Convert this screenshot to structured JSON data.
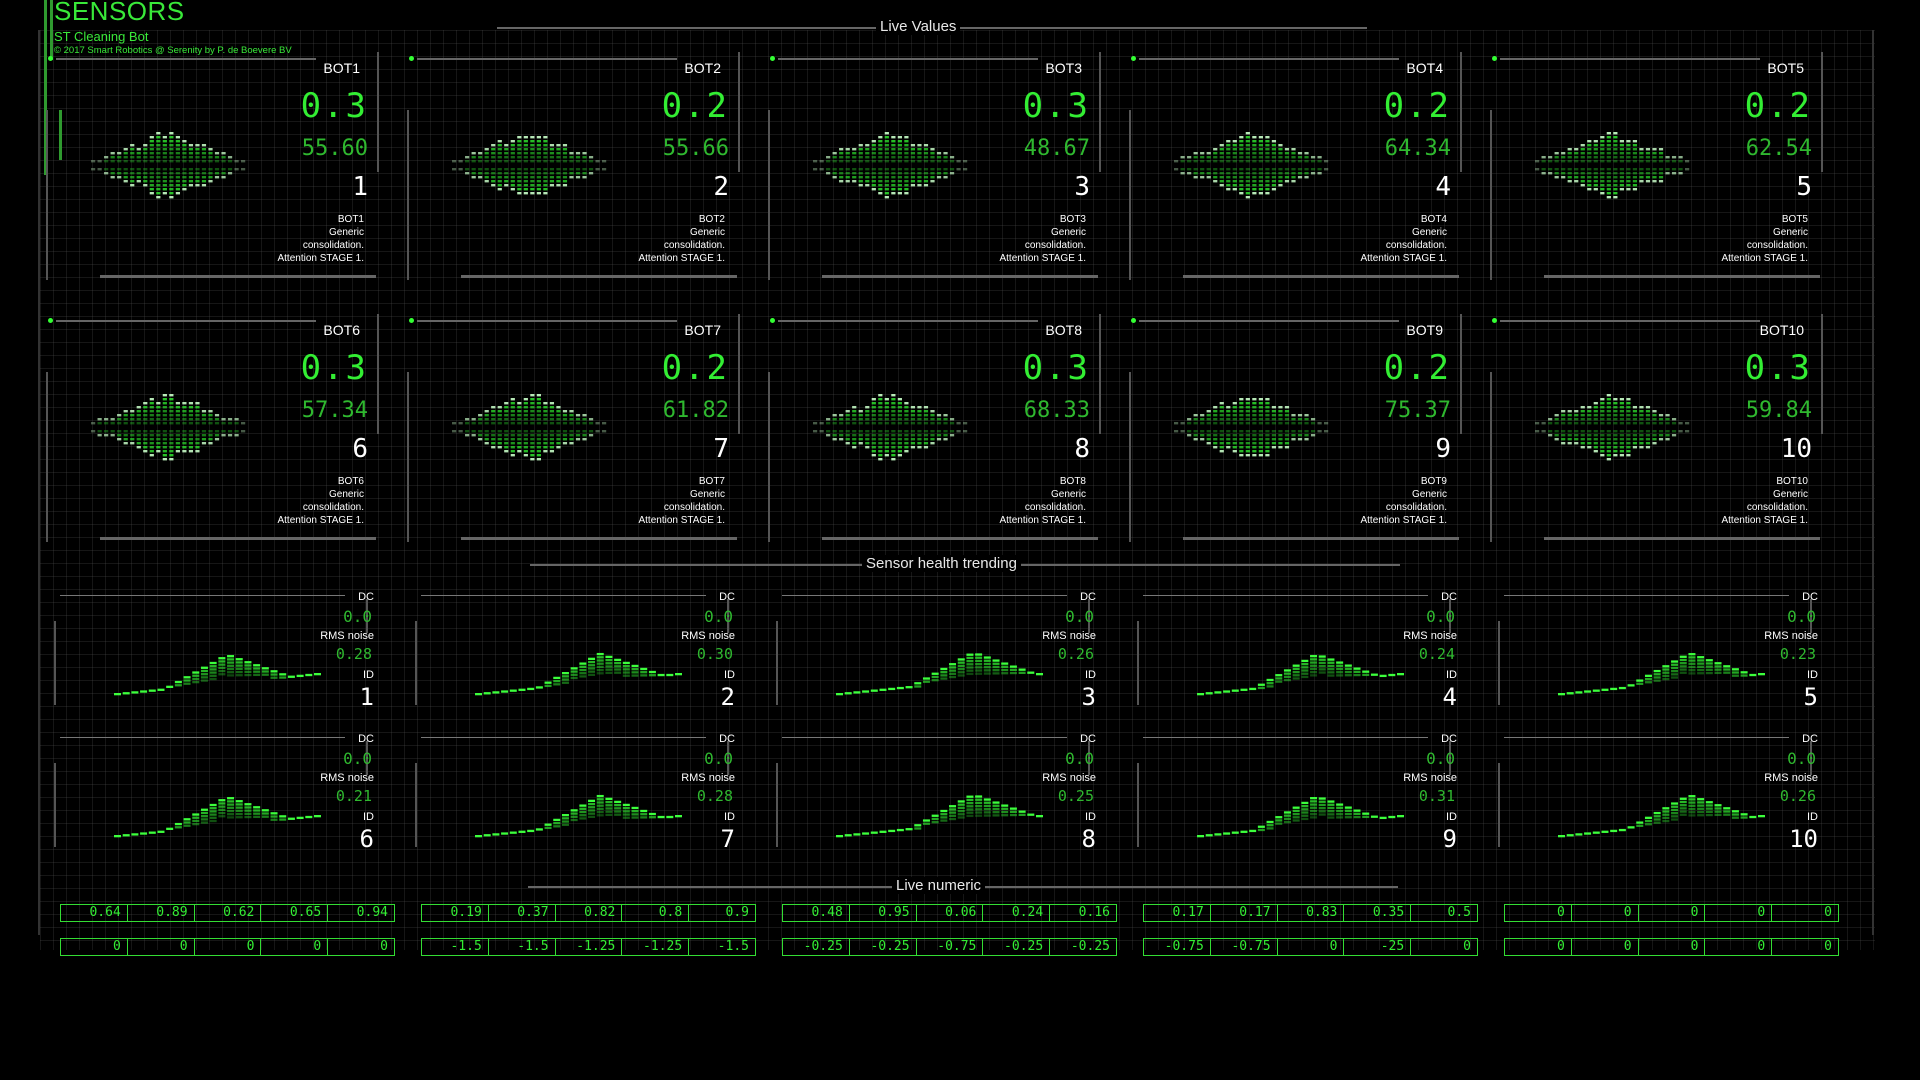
{
  "header": {
    "title": "SENSORS",
    "subtitle": "ST Cleaning Bot",
    "copyright": "© 2017 Smart Robotics @ Serenity by P. de Boevere BV"
  },
  "sections": {
    "live_values": "Live Values",
    "sensor_health": "Sensor health trending",
    "live_numeric": "Live numeric"
  },
  "colors": {
    "accent": "#33ee33",
    "dim_green": "#2fb82f",
    "background": "#000000"
  },
  "bots": [
    {
      "name": "BOT1",
      "big": "0.3",
      "mid": "55.60",
      "id": "1",
      "desc": [
        "BOT1",
        "Generic",
        "consolidation.",
        "Attention STAGE 1."
      ]
    },
    {
      "name": "BOT2",
      "big": "0.2",
      "mid": "55.66",
      "id": "2",
      "desc": [
        "BOT2",
        "Generic",
        "consolidation.",
        "Attention STAGE 1."
      ]
    },
    {
      "name": "BOT3",
      "big": "0.3",
      "mid": "48.67",
      "id": "3",
      "desc": [
        "BOT3",
        "Generic",
        "consolidation.",
        "Attention STAGE 1."
      ]
    },
    {
      "name": "BOT4",
      "big": "0.2",
      "mid": "64.34",
      "id": "4",
      "desc": [
        "BOT4",
        "Generic",
        "consolidation.",
        "Attention STAGE 1."
      ]
    },
    {
      "name": "BOT5",
      "big": "0.2",
      "mid": "62.54",
      "id": "5",
      "desc": [
        "BOT5",
        "Generic",
        "consolidation.",
        "Attention STAGE 1."
      ]
    },
    {
      "name": "BOT6",
      "big": "0.3",
      "mid": "57.34",
      "id": "6",
      "desc": [
        "BOT6",
        "Generic",
        "consolidation.",
        "Attention STAGE 1."
      ]
    },
    {
      "name": "BOT7",
      "big": "0.2",
      "mid": "61.82",
      "id": "7",
      "desc": [
        "BOT7",
        "Generic",
        "consolidation.",
        "Attention STAGE 1."
      ]
    },
    {
      "name": "BOT8",
      "big": "0.3",
      "mid": "68.33",
      "id": "8",
      "desc": [
        "BOT8",
        "Generic",
        "consolidation.",
        "Attention STAGE 1."
      ]
    },
    {
      "name": "BOT9",
      "big": "0.2",
      "mid": "75.37",
      "id": "9",
      "desc": [
        "BOT9",
        "Generic",
        "consolidation.",
        "Attention STAGE 1."
      ]
    },
    {
      "name": "BOT10",
      "big": "0.3",
      "mid": "59.84",
      "id": "10",
      "desc": [
        "BOT10",
        "Generic",
        "consolidation.",
        "Attention STAGE 1."
      ]
    }
  ],
  "trend_labels": {
    "dc": "DC",
    "rms": "RMS noise",
    "id": "ID"
  },
  "trends": [
    {
      "dc": "0.0",
      "rms": "0.28",
      "id": "1"
    },
    {
      "dc": "0.0",
      "rms": "0.30",
      "id": "2"
    },
    {
      "dc": "0.0",
      "rms": "0.26",
      "id": "3"
    },
    {
      "dc": "0.0",
      "rms": "0.24",
      "id": "4"
    },
    {
      "dc": "0.0",
      "rms": "0.23",
      "id": "5"
    },
    {
      "dc": "0.0",
      "rms": "0.21",
      "id": "6"
    },
    {
      "dc": "0.0",
      "rms": "0.28",
      "id": "7"
    },
    {
      "dc": "0.0",
      "rms": "0.25",
      "id": "8"
    },
    {
      "dc": "0.0",
      "rms": "0.31",
      "id": "9"
    },
    {
      "dc": "0.0",
      "rms": "0.26",
      "id": "10"
    }
  ],
  "numeric": {
    "row1": [
      [
        "0.64",
        "0.89",
        "0.62",
        "0.65",
        "0.94"
      ],
      [
        "0.19",
        "0.37",
        "0.82",
        "0.8",
        "0.9"
      ],
      [
        "0.48",
        "0.95",
        "0.06",
        "0.24",
        "0.16"
      ],
      [
        "0.17",
        "0.17",
        "0.83",
        "0.35",
        "0.5"
      ],
      [
        "0",
        "0",
        "0",
        "0",
        "0"
      ]
    ],
    "row2": [
      [
        "0",
        "0",
        "0",
        "0",
        "0"
      ],
      [
        "-1.5",
        "-1.5",
        "-1.25",
        "-1.25",
        "-1.5"
      ],
      [
        "-0.25",
        "-0.25",
        "-0.75",
        "-0.25",
        "-0.25"
      ],
      [
        "-0.75",
        "-0.75",
        "0",
        "-25",
        "0"
      ],
      [
        "0",
        "0",
        "0",
        "0",
        "0"
      ]
    ]
  }
}
